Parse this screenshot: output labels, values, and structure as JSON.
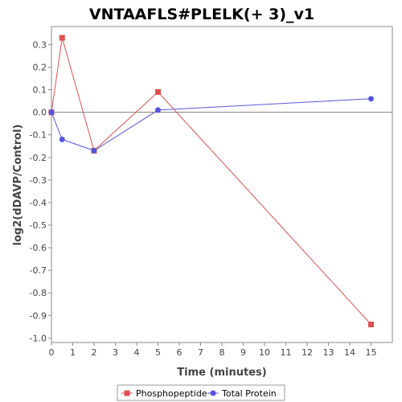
{
  "chart_data": {
    "type": "line",
    "title": "VNTAAFLS#PLELK(+ 3)_v1",
    "xlabel": "Time (minutes)",
    "ylabel": "log2(dDAVP/Control)",
    "xlim": [
      0,
      16
    ],
    "ylim": [
      -1.02,
      0.38
    ],
    "x_ticks": [
      0,
      1,
      2,
      3,
      4,
      5,
      6,
      7,
      8,
      9,
      10,
      11,
      12,
      13,
      14,
      15
    ],
    "y_ticks": [
      {
        "value": 0.3,
        "label": "0.3"
      },
      {
        "value": 0.2,
        "label": "0.2"
      },
      {
        "value": 0.1,
        "label": "0.1"
      },
      {
        "value": 0.0,
        "label": "0.0"
      },
      {
        "value": -0.1,
        "label": "-0.1"
      },
      {
        "value": -0.2,
        "label": "-0.2"
      },
      {
        "value": -0.3,
        "label": "-0.3"
      },
      {
        "value": -0.4,
        "label": "-0.4"
      },
      {
        "value": -0.5,
        "label": "-0.5"
      },
      {
        "value": -0.6,
        "label": "-0.6"
      },
      {
        "value": -0.7,
        "label": "-0.7"
      },
      {
        "value": -0.8,
        "label": "-0.8"
      },
      {
        "value": -0.9,
        "label": "-0.9"
      },
      {
        "value": -1.0,
        "label": "-1.0"
      }
    ],
    "grid": false,
    "zero_line": true,
    "legend_position": "bottom",
    "series": [
      {
        "name": "Phosphopeptide",
        "color": "#e05050",
        "marker": "square",
        "x": [
          0,
          0.5,
          2,
          5,
          15
        ],
        "y": [
          0.0,
          0.33,
          -0.17,
          0.09,
          -0.94
        ]
      },
      {
        "name": "Total Protein",
        "color": "#5555dd",
        "marker": "circle",
        "x": [
          0,
          0.5,
          2,
          5,
          15
        ],
        "y": [
          0.0,
          -0.12,
          -0.17,
          0.01,
          0.06
        ]
      }
    ]
  }
}
